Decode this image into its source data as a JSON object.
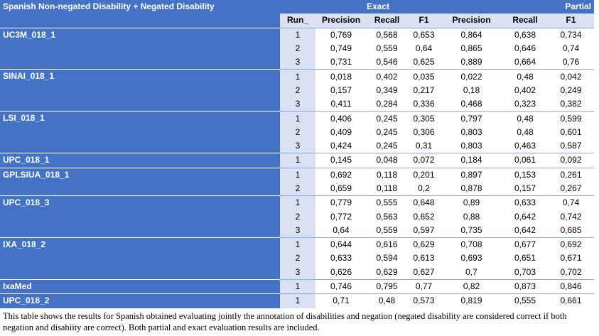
{
  "table": {
    "title": "Spanish Non-negated Disability + Negated Disability",
    "group_exact": "Exact",
    "group_partial": "Partial",
    "columns": [
      "Run_",
      "Precision",
      "Recall",
      "F1",
      "Precision",
      "Recall",
      "F1"
    ],
    "systems": [
      {
        "name": "UC3M_018_1",
        "rows": [
          [
            "1",
            "0,769",
            "0,568",
            "0,653",
            "0,864",
            "0,638",
            "0,734"
          ],
          [
            "2",
            "0,749",
            "0,559",
            "0,64",
            "0,865",
            "0,646",
            "0,74"
          ],
          [
            "3",
            "0,731",
            "0,546",
            "0,625",
            "0,889",
            "0,664",
            "0,76"
          ]
        ]
      },
      {
        "name": "SINAI_018_1",
        "rows": [
          [
            "1",
            "0,018",
            "0,402",
            "0,035",
            "0,022",
            "0,48",
            "0,042"
          ],
          [
            "2",
            "0,157",
            "0,349",
            "0,217",
            "0,18",
            "0,402",
            "0,249"
          ],
          [
            "3",
            "0,411",
            "0,284",
            "0,336",
            "0,468",
            "0,323",
            "0,382"
          ]
        ]
      },
      {
        "name": "LSI_018_1",
        "rows": [
          [
            "1",
            "0,406",
            "0,245",
            "0,305",
            "0,797",
            "0,48",
            "0,599"
          ],
          [
            "2",
            "0,409",
            "0,245",
            "0,306",
            "0,803",
            "0,48",
            "0,601"
          ],
          [
            "3",
            "0,424",
            "0,245",
            "0,31",
            "0,803",
            "0,463",
            "0,587"
          ]
        ]
      },
      {
        "name": "UPC_018_1",
        "rows": [
          [
            "1",
            "0,145",
            "0,048",
            "0,072",
            "0,184",
            "0,061",
            "0,092"
          ]
        ]
      },
      {
        "name": "GPLSIUA_018_1",
        "rows": [
          [
            "1",
            "0,692",
            "0,118",
            "0,201",
            "0,897",
            "0,153",
            "0,261"
          ],
          [
            "2",
            "0,659",
            "0,118",
            "0,2",
            "0,878",
            "0,157",
            "0,267"
          ]
        ]
      },
      {
        "name": "UPC_018_3",
        "rows": [
          [
            "1",
            "0,779",
            "0,555",
            "0,648",
            "0,89",
            "0,633",
            "0,74"
          ],
          [
            "2",
            "0,772",
            "0,563",
            "0,652",
            "0,88",
            "0,642",
            "0,742"
          ],
          [
            "3",
            "0,64",
            "0,559",
            "0,597",
            "0,735",
            "0,642",
            "0,685"
          ]
        ]
      },
      {
        "name": "IXA_018_2",
        "rows": [
          [
            "1",
            "0,644",
            "0,616",
            "0,629",
            "0,708",
            "0,677",
            "0,692"
          ],
          [
            "2",
            "0,633",
            "0,594",
            "0,613",
            "0,693",
            "0,651",
            "0,671"
          ],
          [
            "3",
            "0,626",
            "0,629",
            "0,627",
            "0,7",
            "0,703",
            "0,702"
          ]
        ]
      },
      {
        "name": "IxaMed",
        "rows": [
          [
            "1",
            "0,746",
            "0,795",
            "0,77",
            "0,82",
            "0,873",
            "0,846"
          ]
        ]
      },
      {
        "name": "UPC_018_2",
        "rows": [
          [
            "1",
            "0,71",
            "0,48",
            "0,573",
            "0,819",
            "0,555",
            "0,661"
          ]
        ]
      }
    ]
  },
  "caption": "This table shows the results for Spanish obtained evaluating jointly the annotation of disabilities and negation (negated disability are considered correct if both negation and disabiity are correct). Both partial and exact evaluation results are included.",
  "colors": {
    "header_blue": "#4472c4",
    "light_blue": "#d9e1f2"
  }
}
